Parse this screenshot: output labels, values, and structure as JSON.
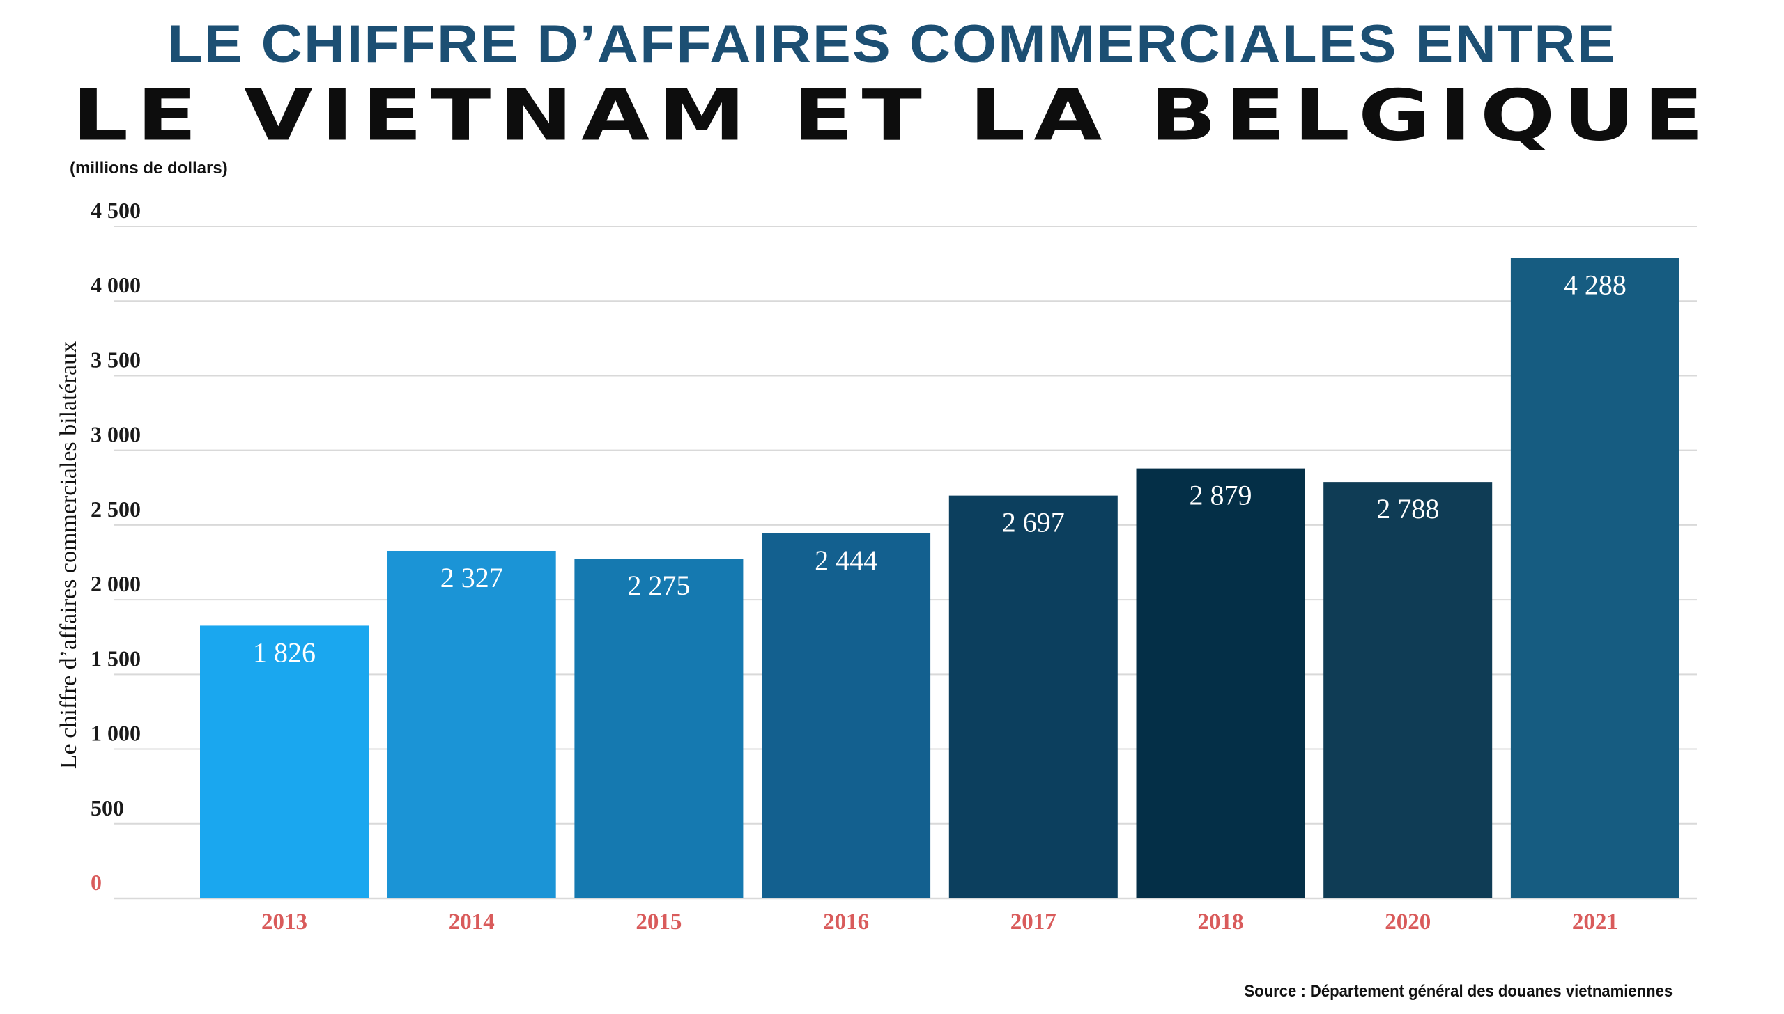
{
  "header": {
    "title_line1": "LE CHIFFRE D’AFFAIRES COMMERCIALES ENTRE",
    "title_line2": "LE VIETNAM ET LA BELGIQUE"
  },
  "footer": {
    "source": "Source : Département général des douanes vietnamiennes"
  },
  "colors": {
    "title_line1": "#1c4f73",
    "title_line2": "#0d0d0d",
    "category_labels": "#d95b5b",
    "grid": "#d9d9d9",
    "bars": [
      "#1aa7ef",
      "#1b94d6",
      "#1579b0",
      "#13608f",
      "#0c3f5e",
      "#042f47",
      "#0f3c55",
      "#165c81"
    ]
  },
  "chart_data": {
    "type": "bar",
    "title": "LE CHIFFRE D’AFFAIRES COMMERCIALES ENTRE LE VIETNAM ET LA BELGIQUE",
    "units": "(millions de dollars)",
    "ylabel": "Le chiffre d’affaires commerciales bilatéraux",
    "xlabel": "",
    "categories": [
      "2013",
      "2014",
      "2015",
      "2016",
      "2017",
      "2018",
      "2020",
      "2021"
    ],
    "values": [
      1826,
      2327,
      2275,
      2444,
      2697,
      2879,
      2788,
      4288
    ],
    "value_labels": [
      "1 826",
      "2 327",
      "2 275",
      "2 444",
      "2 697",
      "2 879",
      "2 788",
      "4 288"
    ],
    "ylim": [
      0,
      4500
    ],
    "yticks": [
      0,
      500,
      1000,
      1500,
      2000,
      2500,
      3000,
      3500,
      4000,
      4500
    ],
    "ytick_labels": [
      "0",
      "500",
      "1 000",
      "1 500",
      "2 000",
      "2 500",
      "3 000",
      "3 500",
      "4 000",
      "4 500"
    ],
    "grid": true,
    "legend": "none"
  }
}
